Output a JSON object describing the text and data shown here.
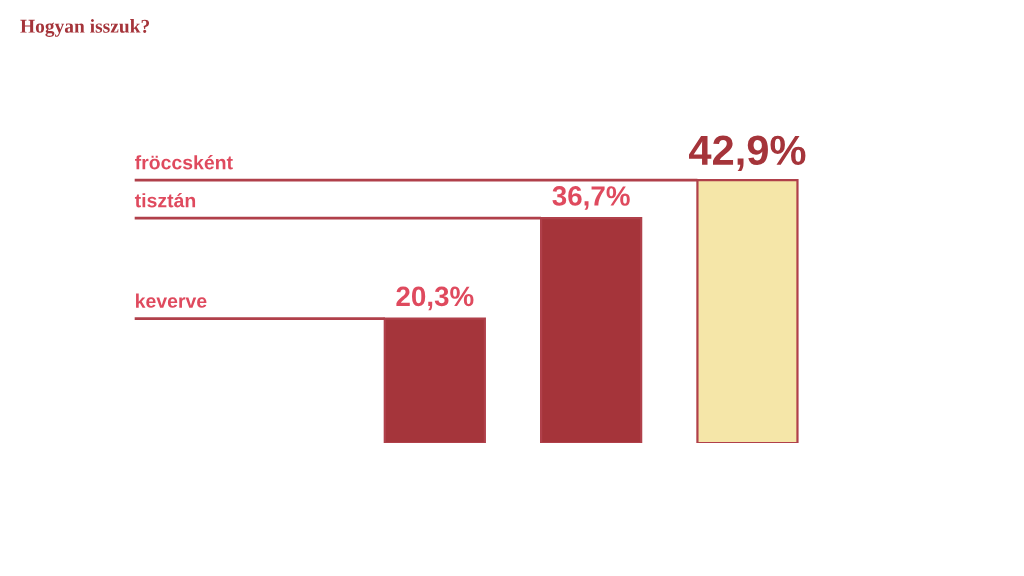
{
  "chart_data": {
    "type": "bar",
    "title": "Hogyan isszuk?",
    "categories": [
      null,
      null,
      null
    ],
    "values": [
      20.3,
      36.7,
      42.9
    ],
    "colors": [
      "#a5353b",
      "#a5343a",
      "#f5e6a8"
    ],
    "value_labels": [
      "20,3%",
      "36,7%",
      "42,9%"
    ],
    "ref_lines": [
      {
        "axis": "y",
        "value": 42.9,
        "label": "fröccsként",
        "color": "#b0404a"
      },
      {
        "axis": "y",
        "value": 36.7,
        "label": "tisztán",
        "color": "#b0404a"
      },
      {
        "axis": "y",
        "value": 20.3,
        "label": "keverve",
        "color": "#b0404a"
      }
    ],
    "tick_labels": false
  }
}
